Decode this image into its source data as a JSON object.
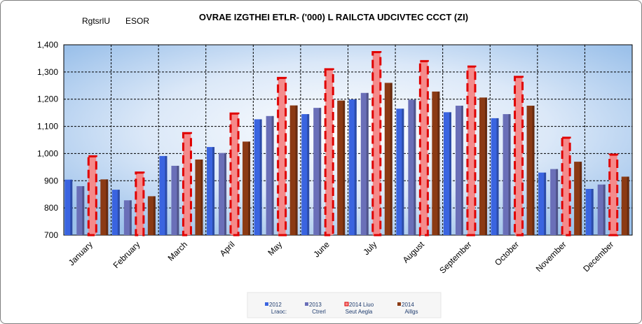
{
  "chart_data": {
    "type": "bar",
    "title": "OVRAE IZGTHEI ETLR- ('000) L RAILCTA UDCIVTEC CCCT (ZI)",
    "corner_labels": [
      "RgtsrlU",
      "ESOR"
    ],
    "categories": [
      "January",
      "February",
      "March",
      "April",
      "May",
      "June",
      "July",
      "August",
      "September",
      "October",
      "November",
      "December"
    ],
    "ylim": [
      700,
      1400
    ],
    "yticks": [
      "700",
      "800",
      "900",
      "1,000",
      "1,100",
      "1,200",
      "1,300",
      "1,400"
    ],
    "grid": true,
    "legend_position": "bottom",
    "series": [
      {
        "name": "2012",
        "sublabel": "Lraoc:",
        "color": "#3a64e0",
        "values": [
          904,
          867,
          991,
          1024,
          1126,
          1145,
          1199,
          1165,
          1152,
          1130,
          930,
          870
        ]
      },
      {
        "name": "2013",
        "sublabel": "Ctrerl",
        "color": "#6a6fb8",
        "values": [
          880,
          828,
          955,
          1002,
          1138,
          1168,
          1223,
          1198,
          1176,
          1145,
          943,
          886
        ]
      },
      {
        "name": "2014 Liuo",
        "sublabel": "Seut Aegla",
        "color": "#f47a7a",
        "values": [
          990,
          930,
          1075,
          1147,
          1278,
          1310,
          1373,
          1340,
          1320,
          1282,
          1058,
          996
        ]
      },
      {
        "name": "2014",
        "sublabel": "Aillgs",
        "color": "#8b3a14",
        "values": [
          905,
          843,
          978,
          1044,
          1177,
          1195,
          1260,
          1228,
          1206,
          1176,
          970,
          915
        ]
      }
    ]
  }
}
